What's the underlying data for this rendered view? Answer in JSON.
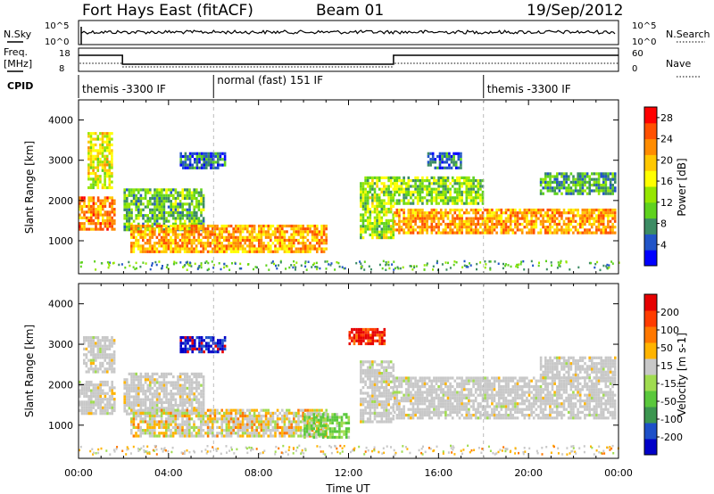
{
  "header": {
    "station": "Fort Hays East (fitACF)",
    "beam": "Beam 01",
    "date": "19/Sep/2012"
  },
  "aux_labels": {
    "nsky": "N.Sky",
    "nsearch": "N.Search",
    "freq": "Freq.",
    "freq_unit": "[MHz]",
    "nave": "Nave",
    "cpid": "CPID"
  },
  "noise_panel": {
    "left_ticks": [
      "10^5",
      "10^0"
    ],
    "right_ticks": [
      "10^5",
      "10^0"
    ]
  },
  "freq_panel": {
    "left_ticks": [
      "18",
      "8"
    ],
    "right_ticks": [
      "60",
      "0"
    ]
  },
  "cpid_segments": [
    {
      "start_hour": 0,
      "end_hour": 6,
      "label": "themis -3300 IF"
    },
    {
      "start_hour": 6,
      "end_hour": 18,
      "label": "normal (fast) 151 IF"
    },
    {
      "start_hour": 18,
      "end_hour": 24,
      "label": "themis -3300 IF"
    }
  ],
  "chart_data": [
    {
      "type": "heatmap",
      "name": "power",
      "ylabel": "Slant Range [km]",
      "ylim": [
        180,
        4500
      ],
      "yticks": [
        1000,
        2000,
        3000,
        4000
      ],
      "xlim": [
        0,
        24
      ],
      "colorbar": {
        "label": "Power [dB]",
        "ticks": [
          "4",
          "8",
          "12",
          "16",
          "20",
          "24",
          "28"
        ],
        "range": [
          0,
          30
        ],
        "colors": [
          "#0000ff",
          "#2255c8",
          "#3c8c64",
          "#5fd21e",
          "#96e600",
          "#ffff00",
          "#ffc800",
          "#ff8c00",
          "#ff5000",
          "#ff0000"
        ]
      },
      "echo_regions": [
        {
          "t0": 0.0,
          "t1": 1.6,
          "r0": 1300,
          "r1": 2100,
          "level": 0.75
        },
        {
          "t0": 0.4,
          "t1": 1.5,
          "r0": 2300,
          "r1": 3700,
          "level": 0.55
        },
        {
          "t0": 2.0,
          "t1": 5.6,
          "r0": 1300,
          "r1": 2300,
          "level": 0.35
        },
        {
          "t0": 2.3,
          "t1": 11.0,
          "r0": 700,
          "r1": 1400,
          "level": 0.7
        },
        {
          "t0": 4.5,
          "t1": 6.5,
          "r0": 2800,
          "r1": 3200,
          "level": 0.2
        },
        {
          "t0": 12.5,
          "t1": 14.0,
          "r0": 1100,
          "r1": 2600,
          "level": 0.45
        },
        {
          "t0": 14.0,
          "t1": 23.9,
          "r0": 1200,
          "r1": 1800,
          "level": 0.72
        },
        {
          "t0": 14.0,
          "t1": 18.0,
          "r0": 1900,
          "r1": 2600,
          "level": 0.42
        },
        {
          "t0": 15.5,
          "t1": 17.0,
          "r0": 2800,
          "r1": 3200,
          "level": 0.2
        },
        {
          "t0": 20.5,
          "t1": 23.9,
          "r0": 2200,
          "r1": 2700,
          "level": 0.3
        }
      ]
    },
    {
      "type": "heatmap",
      "name": "velocity",
      "ylabel": "Slant Range [km]",
      "ylim": [
        180,
        4500
      ],
      "yticks": [
        1000,
        2000,
        3000,
        4000
      ],
      "xlim": [
        0,
        24
      ],
      "xlabel": "Time UT",
      "xticks": [
        "00:00",
        "04:00",
        "08:00",
        "12:00",
        "16:00",
        "20:00",
        "00:00"
      ],
      "colorbar": {
        "label": "Velocity [m s-1]",
        "ticks": [
          "200",
          "100",
          "50",
          "15",
          "-15",
          "-50",
          "-100",
          "-200"
        ],
        "colors": [
          "#0000c8",
          "#1e50c8",
          "#3c9650",
          "#5ac83c",
          "#a0dc50",
          "#c8c8c8",
          "#ffb400",
          "#ff7800",
          "#ff3c00",
          "#e60000"
        ]
      },
      "echo_regions": [
        {
          "t0": 0.0,
          "t1": 1.6,
          "r0": 1300,
          "r1": 2100,
          "vel": "ground"
        },
        {
          "t0": 0.2,
          "t1": 1.6,
          "r0": 2300,
          "r1": 3200,
          "vel": "ground"
        },
        {
          "t0": 2.0,
          "t1": 5.6,
          "r0": 1300,
          "r1": 2300,
          "vel": "ground"
        },
        {
          "t0": 2.3,
          "t1": 11.0,
          "r0": 700,
          "r1": 1400,
          "vel": "mixed"
        },
        {
          "t0": 4.5,
          "t1": 6.5,
          "r0": 2800,
          "r1": 3200,
          "vel": "away"
        },
        {
          "t0": 10.0,
          "t1": 12.0,
          "r0": 700,
          "r1": 1300,
          "vel": "toward"
        },
        {
          "t0": 12.5,
          "t1": 14.0,
          "r0": 1100,
          "r1": 2600,
          "vel": "ground"
        },
        {
          "t0": 14.0,
          "t1": 23.9,
          "r0": 1200,
          "r1": 2200,
          "vel": "ground"
        },
        {
          "t0": 12.0,
          "t1": 13.6,
          "r0": 3000,
          "r1": 3400,
          "vel": "red"
        },
        {
          "t0": 20.5,
          "t1": 23.9,
          "r0": 2200,
          "r1": 2700,
          "vel": "ground"
        }
      ]
    }
  ]
}
